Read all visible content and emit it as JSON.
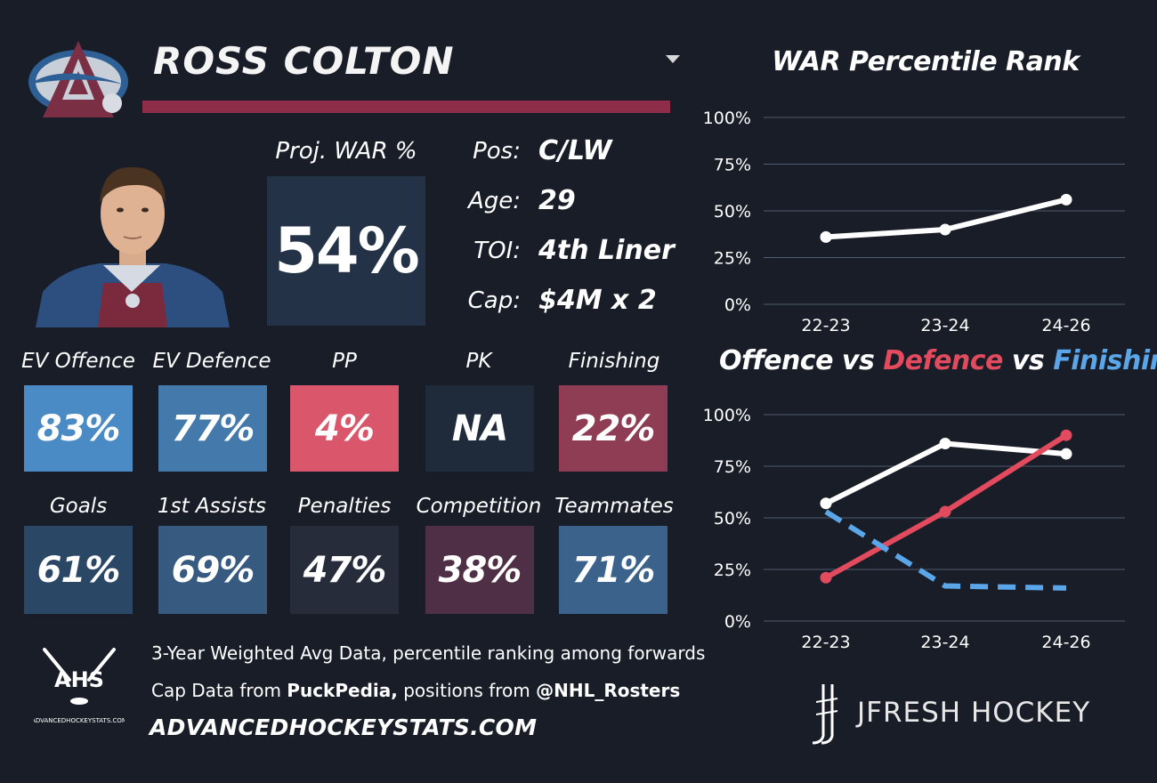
{
  "player": {
    "name": "ROSS COLTON"
  },
  "war": {
    "label": "Proj. WAR %",
    "value": "54%"
  },
  "info": [
    {
      "label": "Pos:",
      "value": "C/LW"
    },
    {
      "label": "Age:",
      "value": "29"
    },
    {
      "label": "TOI:",
      "value": "4th Liner"
    },
    {
      "label": "Cap:",
      "value": "$4M x 2"
    }
  ],
  "stats_row1": [
    {
      "label": "EV Offence",
      "value": "83%",
      "color": "#4a8ac5"
    },
    {
      "label": "EV Defence",
      "value": "77%",
      "color": "#4379ab"
    },
    {
      "label": "PP",
      "value": "4%",
      "color": "#d9566b"
    },
    {
      "label": "PK",
      "value": "NA",
      "color": "#1f2b3a"
    },
    {
      "label": "Finishing",
      "value": "22%",
      "color": "#8e3d54"
    }
  ],
  "stats_row2": [
    {
      "label": "Goals",
      "value": "61%",
      "color": "#2b4766"
    },
    {
      "label": "1st Assists",
      "value": "69%",
      "color": "#375b80"
    },
    {
      "label": "Penalties",
      "value": "47%",
      "color": "#262c3a"
    },
    {
      "label": "Competition",
      "value": "38%",
      "color": "#4f2f45"
    },
    {
      "label": "Teammates",
      "value": "71%",
      "color": "#3a628b"
    }
  ],
  "footer": {
    "line1": "3-Year Weighted Avg Data, percentile ranking among forwards",
    "line2_a": "Cap Data from ",
    "line2_b": "PuckPedia,",
    "line2_c": " positions from ",
    "line2_d": "@NHL_Rosters",
    "site": "ADVANCEDHOCKEYSTATS.COM",
    "ahs_text": "AHS",
    "ahs_small": "ADVANCEDHOCKEYSTATS.COM",
    "brand": "JFRESH HOCKEY"
  },
  "chart_data": [
    {
      "type": "line",
      "title": "WAR Percentile Rank",
      "categories": [
        "22-23",
        "23-24",
        "24-26"
      ],
      "series": [
        {
          "values": [
            36,
            40,
            56
          ],
          "color": "#ffffff",
          "dashed": false
        }
      ],
      "yticks": [
        "0%",
        "25%",
        "50%",
        "75%",
        "100%"
      ],
      "ylim": [
        0,
        100
      ],
      "grid": true
    },
    {
      "type": "line",
      "title_parts": [
        {
          "text": "Offence",
          "color": "#ffffff"
        },
        {
          "text": " vs ",
          "color": "#ffffff"
        },
        {
          "text": "Defence",
          "color": "#e24a5e"
        },
        {
          "text": " vs ",
          "color": "#ffffff"
        },
        {
          "text": "Finishing",
          "color": "#5aa6e8"
        }
      ],
      "categories": [
        "22-23",
        "23-24",
        "24-26"
      ],
      "series": [
        {
          "values": [
            57,
            86,
            81
          ],
          "color": "#ffffff",
          "dashed": false
        },
        {
          "values": [
            21,
            53,
            90
          ],
          "color": "#e24a5e",
          "dashed": false
        },
        {
          "values": [
            53,
            17,
            16
          ],
          "color": "#5aa6e8",
          "dashed": true
        }
      ],
      "yticks": [
        "0%",
        "25%",
        "50%",
        "75%",
        "100%"
      ],
      "ylim": [
        0,
        100
      ],
      "grid": true
    }
  ]
}
